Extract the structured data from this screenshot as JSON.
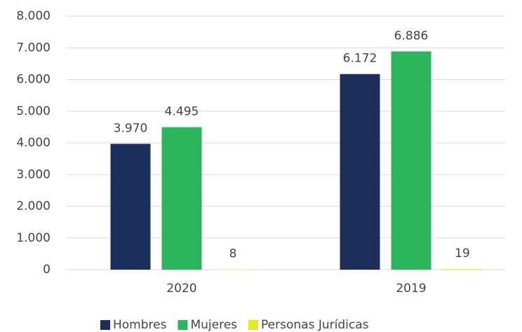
{
  "chart_data": {
    "type": "bar",
    "categories": [
      "2020",
      "2019"
    ],
    "series": [
      {
        "name": "Hombres",
        "color": "#1c2e5a",
        "values": [
          3970,
          6172
        ],
        "value_labels": [
          "3.970",
          "6.172"
        ]
      },
      {
        "name": "Mujeres",
        "color": "#2db55d",
        "values": [
          4495,
          6886
        ],
        "value_labels": [
          "4.495",
          "6.886"
        ]
      },
      {
        "name": "Personas Jurídicas",
        "color": "#e8e81c",
        "values": [
          8,
          19
        ],
        "value_labels": [
          "8",
          "19"
        ]
      }
    ],
    "ylim": [
      0,
      8000
    ],
    "yticks": [
      0,
      {
        "value": 1000,
        "label": "1.000"
      },
      {
        "value": 2000,
        "label": "2.000"
      },
      {
        "value": 3000,
        "label": "3.000"
      },
      {
        "value": 4000,
        "label": "4.000"
      },
      {
        "value": 5000,
        "label": "5.000"
      },
      {
        "value": 6000,
        "label": "6.000"
      },
      {
        "value": 7000,
        "label": "7.000"
      },
      {
        "value": 8000,
        "label": "8.000"
      }
    ],
    "grid": true,
    "legend": "bottom"
  }
}
